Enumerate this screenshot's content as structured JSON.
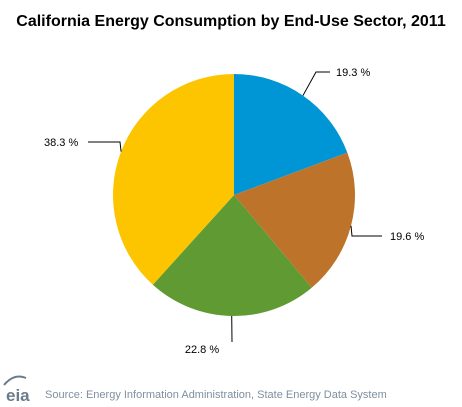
{
  "chart_data": {
    "type": "pie",
    "title": "California Energy Consumption by End-Use Sector, 2011",
    "slices": [
      {
        "label": "19.3 %",
        "value": 19.3,
        "color": "#0096d6"
      },
      {
        "label": "19.6 %",
        "value": 19.6,
        "color": "#bd742a"
      },
      {
        "label": "22.8 %",
        "value": 22.8,
        "color": "#5f9a32"
      },
      {
        "label": "38.3 %",
        "value": 38.3,
        "color": "#fdc500"
      }
    ],
    "start_angle_deg": 0,
    "direction": "clockwise",
    "legend": "none"
  },
  "logo": {
    "text": "eia"
  },
  "source": "Source: Energy Information Administration, State Energy Data System"
}
